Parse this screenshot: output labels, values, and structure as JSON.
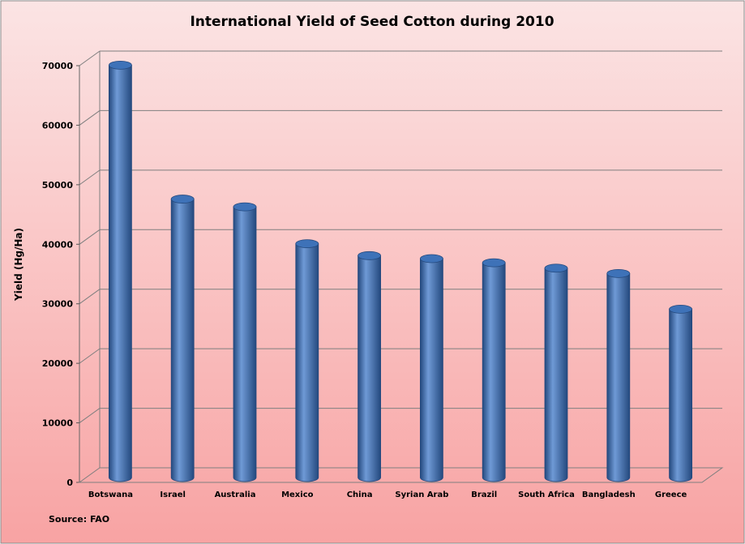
{
  "chart_data": {
    "type": "bar",
    "title": "International Yield of Seed Cotton during 2010",
    "ylabel": "Yield (Hg/Ha)",
    "xlabel": "",
    "source": "Source: FAO",
    "categories": [
      "Botswana",
      "Israel",
      "Australia",
      "Mexico",
      "China",
      "Syrian Arab",
      "Brazil",
      "South Africa",
      "Bangladesh",
      "Greece"
    ],
    "values": [
      69000,
      46500,
      45200,
      39000,
      37000,
      36500,
      35800,
      34900,
      34000,
      28000
    ],
    "ylim": [
      0,
      70000
    ],
    "yticks": [
      "0",
      "10000",
      "20000",
      "30000",
      "40000",
      "50000",
      "60000",
      "70000"
    ],
    "grid": true,
    "legend": "none",
    "colors": {
      "bar": "#3e72b8",
      "bar_light": "#6f9ad6",
      "bar_dark": "#24497e",
      "background_top": "#fbe4e4",
      "background_bottom": "#f8a3a3",
      "gridline": "#7f7f7f"
    }
  }
}
